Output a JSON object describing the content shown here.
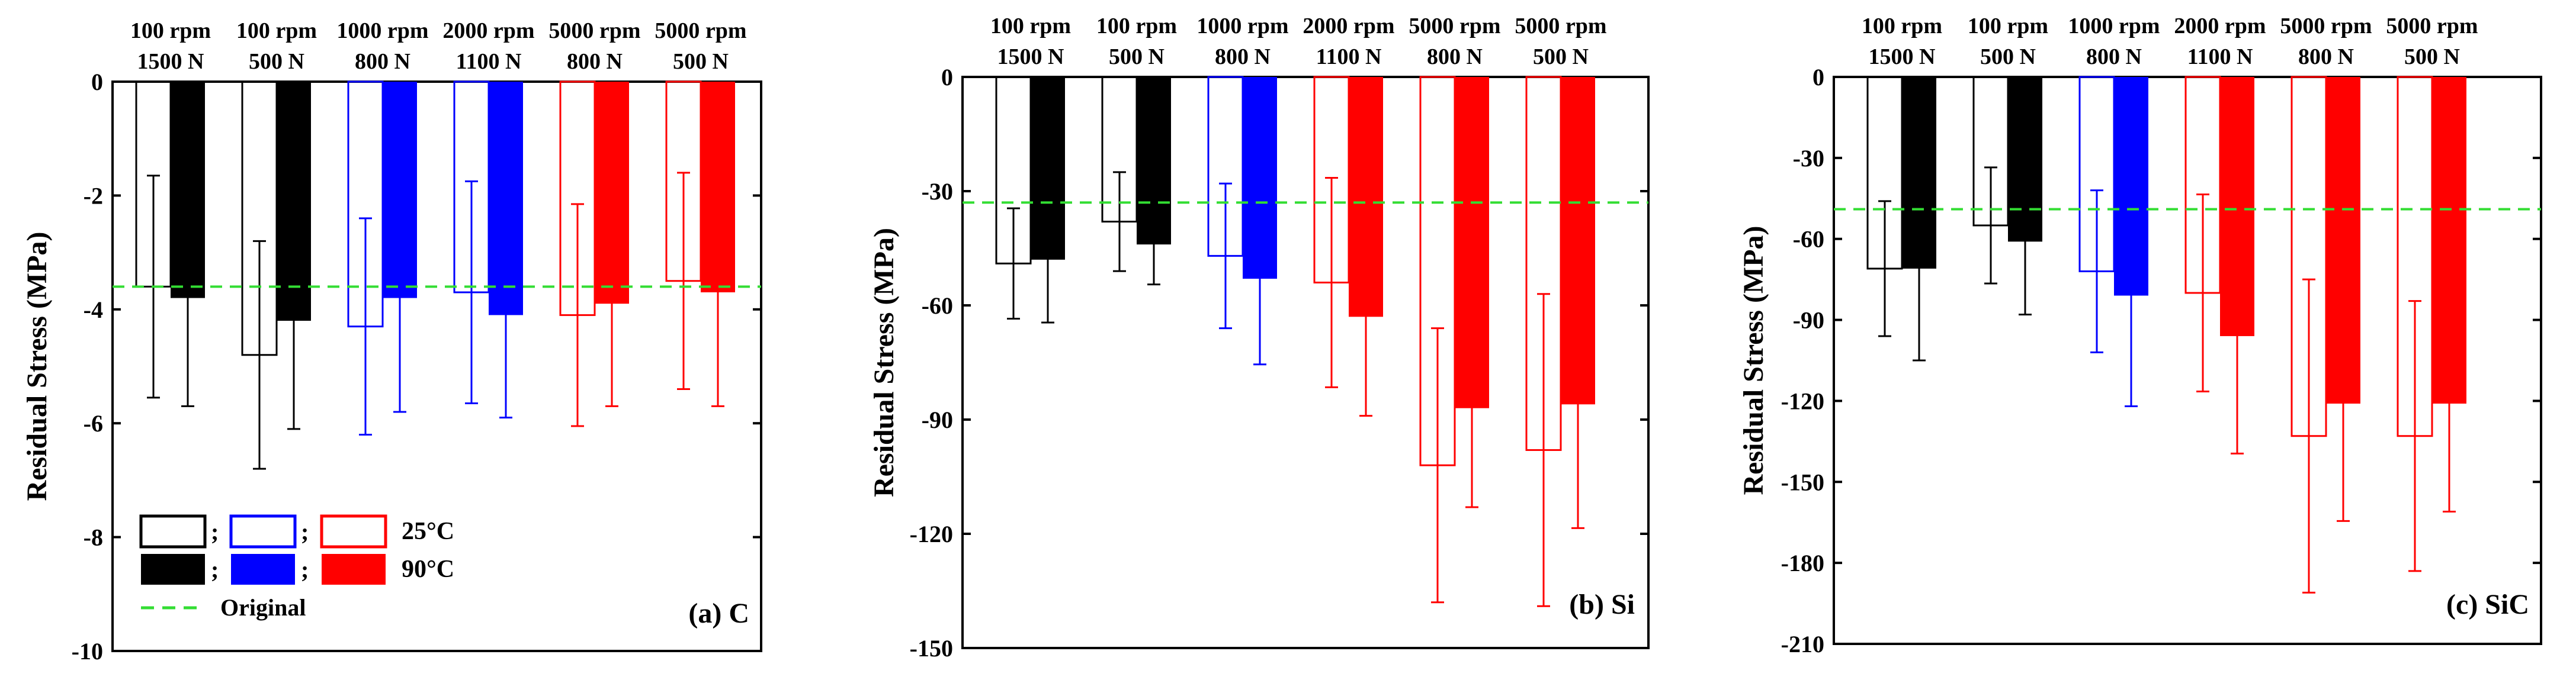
{
  "legend": {
    "open_label": "25°C",
    "filled_label": "90°C",
    "original_label": "Original",
    "separator": ";",
    "colors": [
      "#000000",
      "#0000ff",
      "#ff0000"
    ]
  },
  "chart_data": [
    {
      "type": "bar",
      "panel_label": "(a) C",
      "ylabel": "Residual Stress (MPa)",
      "ylim": [
        -10,
        0
      ],
      "yticks": [
        0,
        -2,
        -4,
        -6,
        -8,
        -10
      ],
      "original": -3.6,
      "categories": [
        {
          "rpm": "100 rpm",
          "load": "1500 N",
          "color": "#000000"
        },
        {
          "rpm": "100 rpm",
          "load": "500 N",
          "color": "#000000"
        },
        {
          "rpm": "1000 rpm",
          "load": "800 N",
          "color": "#0000ff"
        },
        {
          "rpm": "2000 rpm",
          "load": "1100 N",
          "color": "#0000ff"
        },
        {
          "rpm": "5000 rpm",
          "load": "800 N",
          "color": "#ff0000"
        },
        {
          "rpm": "5000 rpm",
          "load": "500 N",
          "color": "#ff0000"
        }
      ],
      "series": [
        {
          "name": "25°C",
          "style": "open",
          "values": [
            -3.6,
            -4.8,
            -4.3,
            -3.7,
            -4.1,
            -3.5
          ],
          "errors": [
            1.95,
            2.0,
            1.9,
            1.95,
            1.95,
            1.9
          ]
        },
        {
          "name": "90°C",
          "style": "filled",
          "values": [
            -3.8,
            -4.2,
            -3.8,
            -4.1,
            -3.9,
            -3.7
          ],
          "errors": [
            1.9,
            1.9,
            2.0,
            1.8,
            1.8,
            2.0
          ]
        }
      ],
      "legend_shown": true
    },
    {
      "type": "bar",
      "panel_label": "(b) Si",
      "ylabel": "Residual Stress (MPa)",
      "ylim": [
        -150,
        0
      ],
      "yticks": [
        0,
        -30,
        -60,
        -90,
        -120,
        -150
      ],
      "original": -33,
      "categories": [
        {
          "rpm": "100 rpm",
          "load": "1500 N",
          "color": "#000000"
        },
        {
          "rpm": "100 rpm",
          "load": "500 N",
          "color": "#000000"
        },
        {
          "rpm": "1000 rpm",
          "load": "800 N",
          "color": "#0000ff"
        },
        {
          "rpm": "2000 rpm",
          "load": "1100 N",
          "color": "#ff0000"
        },
        {
          "rpm": "5000 rpm",
          "load": "800 N",
          "color": "#ff0000"
        },
        {
          "rpm": "5000 rpm",
          "load": "500 N",
          "color": "#ff0000"
        }
      ],
      "series": [
        {
          "name": "25°C",
          "style": "open",
          "values": [
            -49,
            -38,
            -47,
            -54,
            -102,
            -98
          ],
          "errors": [
            14.5,
            13,
            19,
            27.5,
            36,
            41
          ]
        },
        {
          "name": "90°C",
          "style": "filled",
          "values": [
            -48,
            -44,
            -53,
            -63,
            -87,
            -86
          ],
          "errors": [
            16.5,
            10.5,
            22.5,
            26,
            26,
            32.5
          ]
        }
      ],
      "legend_shown": false
    },
    {
      "type": "bar",
      "panel_label": "(c) SiC",
      "ylabel": "Residual Stress (MPa)",
      "ylim": [
        -210,
        0
      ],
      "yticks": [
        0,
        -30,
        -60,
        -90,
        -120,
        -150,
        -180,
        -210
      ],
      "original": -49,
      "categories": [
        {
          "rpm": "100 rpm",
          "load": "1500 N",
          "color": "#000000"
        },
        {
          "rpm": "100 rpm",
          "load": "500 N",
          "color": "#000000"
        },
        {
          "rpm": "1000 rpm",
          "load": "800 N",
          "color": "#0000ff"
        },
        {
          "rpm": "2000 rpm",
          "load": "1100 N",
          "color": "#ff0000"
        },
        {
          "rpm": "5000 rpm",
          "load": "800 N",
          "color": "#ff0000"
        },
        {
          "rpm": "5000 rpm",
          "load": "500 N",
          "color": "#ff0000"
        }
      ],
      "series": [
        {
          "name": "25°C",
          "style": "open",
          "values": [
            -71,
            -55,
            -72,
            -80,
            -133,
            -133
          ],
          "errors": [
            25,
            21.5,
            30,
            36.5,
            58,
            50
          ]
        },
        {
          "name": "90°C",
          "style": "filled",
          "values": [
            -71,
            -61,
            -81,
            -96,
            -121,
            -121
          ],
          "errors": [
            34,
            27,
            41,
            43.5,
            43.5,
            40
          ]
        }
      ],
      "legend_shown": false
    }
  ]
}
